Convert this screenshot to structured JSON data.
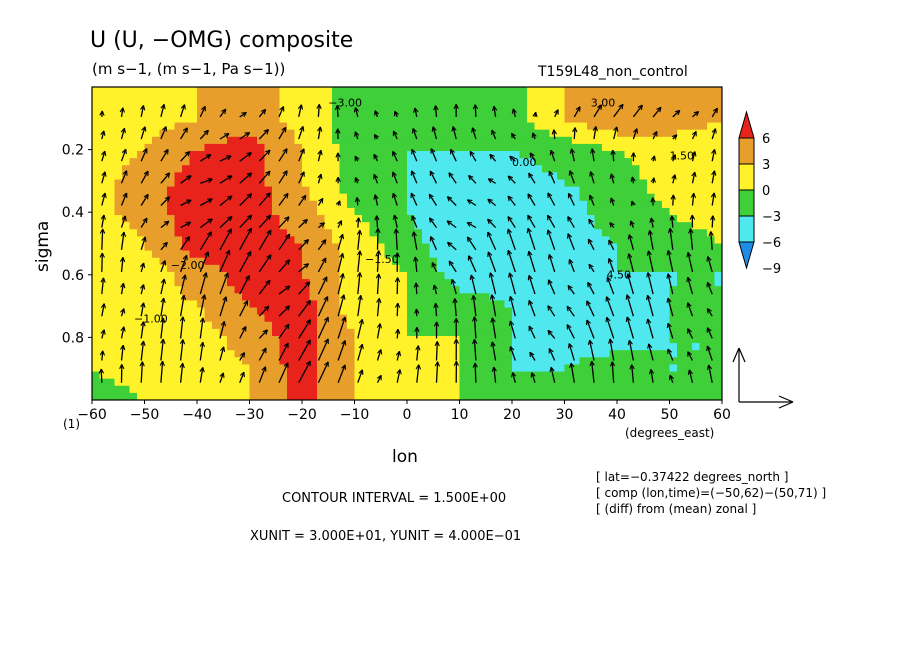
{
  "title": "U (U, −OMG) composite",
  "units": "(m s−1, (m s−1, Pa s−1))",
  "run_label": "T159L48_non_control",
  "x_axis": {
    "label": "lon",
    "unit_label": "(degrees_east)",
    "ticks": [
      "−60",
      "−50",
      "−40",
      "−30",
      "−20",
      "−10",
      "0",
      "10",
      "20",
      "30",
      "40",
      "50",
      "60"
    ],
    "prefix_label": "(1)"
  },
  "y_axis": {
    "label": "sigma",
    "ticks": [
      "0.2",
      "0.4",
      "0.6",
      "0.8"
    ]
  },
  "colorbar": {
    "labels": [
      "6",
      "3",
      "0",
      "−3",
      "−6",
      "−9"
    ],
    "colors": [
      "#e8231c",
      "#e89e2a",
      "#fff22a",
      "#3fcf38",
      "#4fe8ee",
      "#1f8ce8"
    ]
  },
  "info": {
    "lat": "[ lat=−0.37422 degrees_north ]",
    "comp": "[ comp (lon,time)=(−50,62)−(50,71) ]",
    "diff": "[ (diff) from (mean) zonal ]"
  },
  "contour_interval": "CONTOUR INTERVAL = 1.500E+00",
  "units_line": "XUNIT = 3.000E+01, YUNIT = 4.000E−01",
  "contour_labels": [
    "−3.00",
    "3.00",
    "0.00",
    "−2.00",
    "−1.00",
    "−1.50",
    "1.50",
    "4.50"
  ],
  "chart_data": {
    "type": "heatmap",
    "title": "U (U, −OMG) composite",
    "xlabel": "lon",
    "ylabel": "sigma",
    "xlim": [
      -60,
      60
    ],
    "ylim": [
      1.0,
      0.0
    ],
    "x": [
      -60,
      -50,
      -40,
      -30,
      -20,
      -10,
      0,
      10,
      20,
      30,
      40,
      50,
      60
    ],
    "y": [
      0.1,
      0.2,
      0.3,
      0.4,
      0.5,
      0.6,
      0.7,
      0.8,
      0.9,
      1.0
    ],
    "values": [
      [
        0,
        1.5,
        3,
        4.5,
        1.5,
        -1.5,
        -1.5,
        0,
        -1.5,
        3,
        6,
        4.5,
        3
      ],
      [
        1.5,
        3,
        6,
        7.5,
        3,
        -1.5,
        -3,
        -3,
        -3,
        -1.5,
        0,
        1.5,
        1.5
      ],
      [
        1.5,
        4.5,
        7.5,
        7.5,
        3,
        -1.5,
        -3,
        -4.5,
        -4.5,
        -3,
        -1.5,
        1.5,
        1.5
      ],
      [
        1.5,
        4.5,
        7.5,
        7.5,
        4.5,
        0,
        -3,
        -6,
        -4.5,
        -4.5,
        -1.5,
        0,
        1.5
      ],
      [
        0,
        3,
        7.5,
        7.5,
        6,
        1.5,
        -1.5,
        -6,
        -4.5,
        -4.5,
        -3,
        -1.5,
        0
      ],
      [
        0,
        1.5,
        4.5,
        7.5,
        6,
        1.5,
        0,
        -4.5,
        -4.5,
        -3,
        -3,
        -3,
        -3
      ],
      [
        1.5,
        1.5,
        3,
        6,
        7.5,
        1.5,
        0,
        -1.5,
        -3,
        -4.5,
        -4.5,
        -3,
        -3
      ],
      [
        1.5,
        1.5,
        1.5,
        4.5,
        7.5,
        3,
        0,
        0,
        -3,
        -4.5,
        -4.5,
        -3,
        -3
      ],
      [
        0,
        1.5,
        1.5,
        3,
        7.5,
        3,
        1.5,
        0,
        -3,
        -3,
        -1.5,
        -3,
        -3
      ],
      [
        -1.5,
        0,
        1.5,
        3,
        7.5,
        3,
        1.5,
        0,
        0,
        -1.5,
        0,
        0,
        -1.5
      ]
    ],
    "colorbar_levels": [
      -9,
      -6,
      -3,
      0,
      3,
      6
    ],
    "overlay": "vectors (U, −OMG)",
    "grid": false
  }
}
